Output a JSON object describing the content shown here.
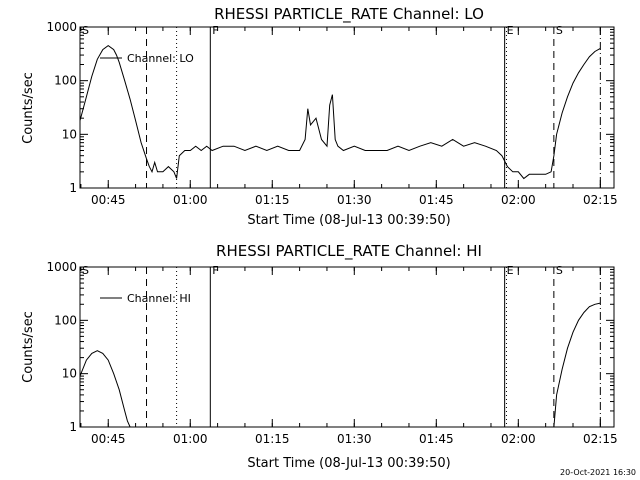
{
  "page": {
    "footer": "20-Oct-2021 16:30"
  },
  "chart_data": [
    {
      "type": "line",
      "title": "RHESSI PARTICLE_RATE Channel: LO",
      "xlabel": "Start Time (08-Jul-13 00:39:50)",
      "ylabel": "Counts/sec",
      "yscale": "log",
      "ylim": [
        1,
        1000
      ],
      "yticks": [
        "1",
        "10",
        "100",
        "1000"
      ],
      "xlim": [
        "00:39:50",
        "02:17:30"
      ],
      "xticks": [
        "00:45",
        "01:00",
        "01:15",
        "01:30",
        "01:45",
        "02:00",
        "02:15"
      ],
      "legend": {
        "label": "Channel: LO",
        "placement": "top-left"
      },
      "markers": [
        {
          "label": "S",
          "time": "00:39:50",
          "style": "dashed"
        },
        {
          "label": "",
          "time": "00:52:00",
          "style": "dashed"
        },
        {
          "label": "",
          "time": "00:57:30",
          "style": "dotted"
        },
        {
          "label": "F",
          "time": "01:03:40",
          "style": "solid"
        },
        {
          "label": "E",
          "time": "01:57:30",
          "style": "solid"
        },
        {
          "label": "",
          "time": "01:57:50",
          "style": "dotted"
        },
        {
          "label": "S",
          "time": "02:06:30",
          "style": "dashed"
        },
        {
          "label": "",
          "time": "02:15:00",
          "style": "dashdot"
        }
      ],
      "series": [
        {
          "name": "",
          "t": [
            "00:39:50",
            "00:41:00",
            "00:42:00",
            "00:43:00",
            "00:44:00",
            "00:45:00",
            "00:46:00",
            "00:46:30",
            "00:47:00",
            "00:48:00",
            "00:49:00",
            "00:50:00",
            "00:51:00",
            "00:52:00",
            "00:52:30",
            "00:53:00",
            "00:53:30",
            "00:54:00",
            "00:55:00",
            "00:56:00",
            "00:57:00",
            "00:57:30",
            "00:58:00",
            "00:59:00",
            "01:00:00",
            "01:01:00",
            "01:02:00",
            "01:03:00",
            "01:04:00",
            "01:06:00",
            "01:08:00",
            "01:10:00",
            "01:12:00",
            "01:14:00",
            "01:16:00",
            "01:18:00",
            "01:20:00",
            "01:21:00",
            "01:21:30",
            "01:22:00",
            "01:23:00",
            "01:24:00",
            "01:25:00",
            "01:25:30",
            "01:26:00",
            "01:26:30",
            "01:27:00",
            "01:28:00",
            "01:30:00",
            "01:32:00",
            "01:34:00",
            "01:36:00",
            "01:38:00",
            "01:40:00",
            "01:42:00",
            "01:44:00",
            "01:46:00",
            "01:48:00",
            "01:50:00",
            "01:52:00",
            "01:54:00",
            "01:56:00",
            "01:57:00",
            "01:58:00",
            "01:59:00",
            "02:00:00",
            "02:01:00",
            "02:02:00",
            "02:03:00",
            "02:04:00",
            "02:05:00",
            "02:06:00",
            "02:06:30",
            "02:07:00",
            "02:08:00",
            "02:09:00",
            "02:10:00",
            "02:11:00",
            "02:12:00",
            "02:13:00",
            "02:14:00",
            "02:15:00"
          ],
          "y": [
            18,
            50,
            120,
            250,
            380,
            450,
            380,
            300,
            220,
            100,
            45,
            18,
            7,
            3.5,
            2.5,
            2,
            3,
            2,
            2,
            2.5,
            2,
            1.5,
            4,
            5,
            5,
            6,
            5,
            6,
            5,
            6,
            6,
            5,
            6,
            5,
            6,
            5,
            5,
            8,
            30,
            15,
            20,
            8,
            6,
            35,
            55,
            8,
            6,
            5,
            6,
            5,
            5,
            5,
            6,
            5,
            6,
            7,
            6,
            8,
            6,
            7,
            6,
            5,
            4,
            2.5,
            2,
            2,
            1.5,
            1.8,
            1.8,
            1.8,
            1.8,
            2,
            4,
            10,
            25,
            50,
            90,
            140,
            200,
            280,
            350,
            400
          ]
        }
      ]
    },
    {
      "type": "line",
      "title": "RHESSI PARTICLE_RATE Channel: HI",
      "xlabel": "Start Time (08-Jul-13 00:39:50)",
      "ylabel": "Counts/sec",
      "yscale": "log",
      "ylim": [
        1,
        1000
      ],
      "yticks": [
        "1",
        "10",
        "100",
        "1000"
      ],
      "xlim": [
        "00:39:50",
        "02:17:30"
      ],
      "xticks": [
        "00:45",
        "01:00",
        "01:15",
        "01:30",
        "01:45",
        "02:00",
        "02:15"
      ],
      "legend": {
        "label": "Channel: HI",
        "placement": "top-left"
      },
      "markers": [
        {
          "label": "S",
          "time": "00:39:50",
          "style": "dashed"
        },
        {
          "label": "",
          "time": "00:52:00",
          "style": "dashed"
        },
        {
          "label": "",
          "time": "00:57:30",
          "style": "dotted"
        },
        {
          "label": "F",
          "time": "01:03:40",
          "style": "solid"
        },
        {
          "label": "E",
          "time": "01:57:30",
          "style": "solid"
        },
        {
          "label": "",
          "time": "01:57:50",
          "style": "dotted"
        },
        {
          "label": "S",
          "time": "02:06:30",
          "style": "dashed"
        },
        {
          "label": "",
          "time": "02:15:00",
          "style": "dashdot"
        }
      ],
      "series": [
        {
          "name": "",
          "t": [
            "00:39:50",
            "00:41:00",
            "00:42:00",
            "00:43:00",
            "00:44:00",
            "00:45:00",
            "00:46:00",
            "00:47:00",
            "00:48:00",
            "00:48:30",
            "00:49:00"
          ],
          "y": [
            9,
            18,
            24,
            27,
            24,
            18,
            10,
            5,
            2,
            1.3,
            1
          ],
          "t2": [
            "02:06:30",
            "02:07:00",
            "02:08:00",
            "02:09:00",
            "02:10:00",
            "02:11:00",
            "02:12:00",
            "02:13:00",
            "02:14:00",
            "02:15:00"
          ],
          "y2": [
            1,
            4,
            12,
            30,
            60,
            100,
            140,
            180,
            200,
            210
          ]
        }
      ]
    }
  ]
}
